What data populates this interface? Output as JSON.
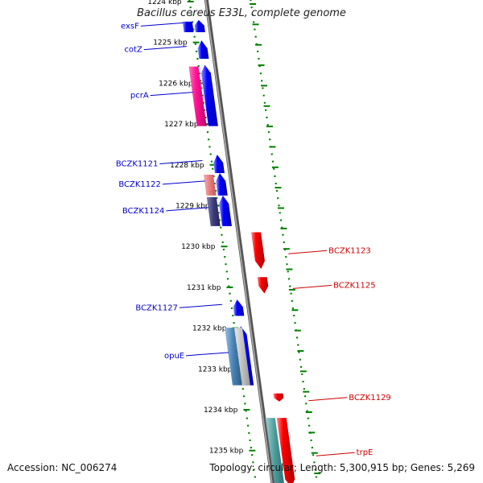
{
  "title": "Bacillus cereus E33L, complete genome",
  "accession_text": "Accession: NC_006274",
  "summary_text": "Topology: circular; Length: 5,300,915 bp; Genes: 5,269",
  "colors": {
    "forward": "#0000ff",
    "reverse": "#ff0000",
    "backbone": "#888888",
    "ticks": "#008000",
    "label_forward": "#0000cc",
    "label_reverse": "#cc0000"
  },
  "scale": {
    "unit": "kbp",
    "ticks": [
      {
        "value": 1224,
        "label": "1224 kbp"
      },
      {
        "value": 1225,
        "label": "1225 kbp"
      },
      {
        "value": 1226,
        "label": "1226 kbp"
      },
      {
        "value": 1227,
        "label": "1227 kbp"
      },
      {
        "value": 1228,
        "label": "1228 kbp"
      },
      {
        "value": 1229,
        "label": "1229 kbp"
      },
      {
        "value": 1230,
        "label": "1230 kbp"
      },
      {
        "value": 1231,
        "label": "1231 kbp"
      },
      {
        "value": 1232,
        "label": "1232 kbp"
      },
      {
        "value": 1233,
        "label": "1233 kbp"
      },
      {
        "value": 1234,
        "label": "1234 kbp"
      },
      {
        "value": 1235,
        "label": "1235 kbp"
      }
    ]
  },
  "genes": [
    {
      "strand": "+",
      "start": 1224.45,
      "end": 1224.75,
      "label": "exsF"
    },
    {
      "strand": "+",
      "start": 1224.95,
      "end": 1225.4,
      "label": "cotZ"
    },
    {
      "strand": "+",
      "start": 1225.55,
      "end": 1227.05,
      "label": "pcrA"
    },
    {
      "strand": "+",
      "start": 1227.75,
      "end": 1228.2,
      "label": "BCZK1121"
    },
    {
      "strand": "+",
      "start": 1228.2,
      "end": 1228.75,
      "label": "BCZK1122"
    },
    {
      "strand": "+",
      "start": 1228.75,
      "end": 1229.5,
      "label": "BCZK1124"
    },
    {
      "strand": "-",
      "start": 1229.65,
      "end": 1230.55,
      "label": "BCZK1123"
    },
    {
      "strand": "-",
      "start": 1230.75,
      "end": 1231.15,
      "label": "BCZK1125"
    },
    {
      "strand": "+",
      "start": 1231.3,
      "end": 1231.7,
      "label": "BCZK1127"
    },
    {
      "strand": "+",
      "start": 1231.95,
      "end": 1233.4,
      "label": "opuE"
    },
    {
      "strand": "-",
      "start": 1233.6,
      "end": 1233.8,
      "label": "BCZK1129"
    },
    {
      "strand": "-",
      "start": 1234.2,
      "end": 1235.9,
      "label": "trpE"
    }
  ]
}
